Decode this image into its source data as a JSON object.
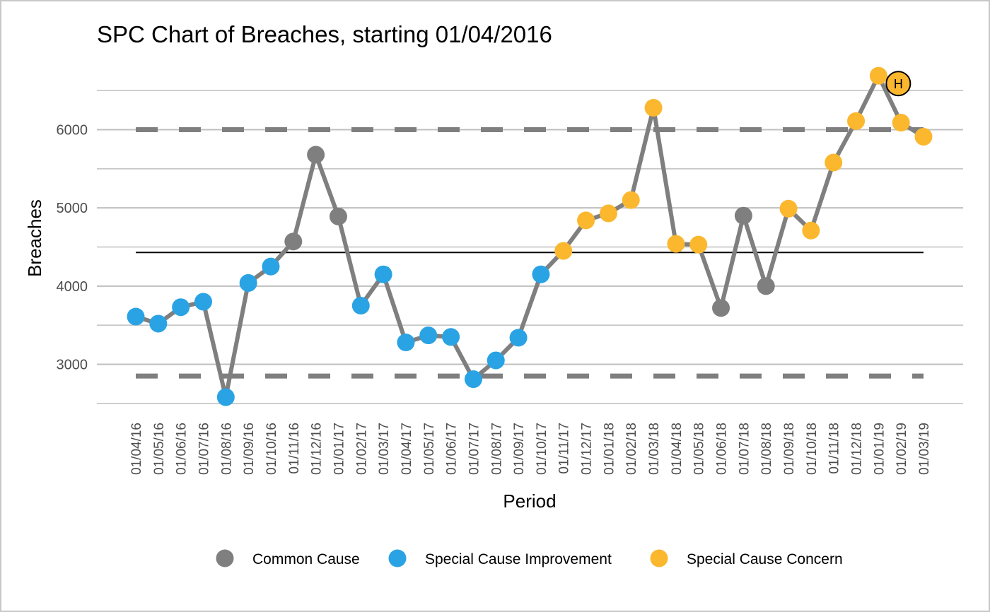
{
  "chart_data": {
    "type": "line",
    "title": "SPC Chart of Breaches, starting 01/04/2016",
    "xlabel": "Period",
    "ylabel": "Breaches",
    "ylim": [
      2500,
      6900
    ],
    "yticks": [
      3000,
      4000,
      5000,
      6000
    ],
    "grid": true,
    "legend_position": "bottom",
    "categories": [
      "01/04/16",
      "01/05/16",
      "01/06/16",
      "01/07/16",
      "01/08/16",
      "01/09/16",
      "01/10/16",
      "01/11/16",
      "01/12/16",
      "01/01/17",
      "01/02/17",
      "01/03/17",
      "01/04/17",
      "01/05/17",
      "01/06/17",
      "01/07/17",
      "01/08/17",
      "01/09/17",
      "01/10/17",
      "01/11/17",
      "01/12/17",
      "01/01/18",
      "01/02/18",
      "01/03/18",
      "01/04/18",
      "01/05/18",
      "01/06/18",
      "01/07/18",
      "01/08/18",
      "01/09/18",
      "01/10/18",
      "01/11/18",
      "01/12/18",
      "01/01/19",
      "01/02/19",
      "01/03/19"
    ],
    "values": [
      3610,
      3520,
      3730,
      3800,
      2580,
      4040,
      4250,
      4570,
      5680,
      4890,
      3750,
      4150,
      3280,
      3370,
      3350,
      2810,
      3050,
      3340,
      4150,
      4450,
      4840,
      4930,
      5100,
      6280,
      4540,
      4530,
      3720,
      4900,
      4000,
      4990,
      4710,
      5580,
      6110,
      6690,
      6090,
      5910
    ],
    "point_class": [
      "improvement",
      "improvement",
      "improvement",
      "improvement",
      "improvement",
      "improvement",
      "improvement",
      "common",
      "common",
      "common",
      "improvement",
      "improvement",
      "improvement",
      "improvement",
      "improvement",
      "improvement",
      "improvement",
      "improvement",
      "improvement",
      "concern",
      "concern",
      "concern",
      "concern",
      "concern",
      "concern",
      "concern",
      "common",
      "common",
      "common",
      "concern",
      "concern",
      "concern",
      "concern",
      "concern",
      "concern",
      "concern"
    ],
    "mean": 4430,
    "upper_control_limit": 6000,
    "lower_control_limit": 2850,
    "marker": {
      "label": "H",
      "category": "01/01/19",
      "value": 6590
    },
    "legend": [
      {
        "key": "common",
        "label": "Common Cause",
        "color": "#7f7f7f"
      },
      {
        "key": "improvement",
        "label": "Special Cause Improvement",
        "color": "#29a3e4"
      },
      {
        "key": "concern",
        "label": "Special Cause Concern",
        "color": "#fbb72e"
      }
    ],
    "colors": {
      "line": "#7f7f7f",
      "mean": "#000000",
      "limits": "#7f7f7f",
      "grid": "#bfbfbf"
    }
  }
}
